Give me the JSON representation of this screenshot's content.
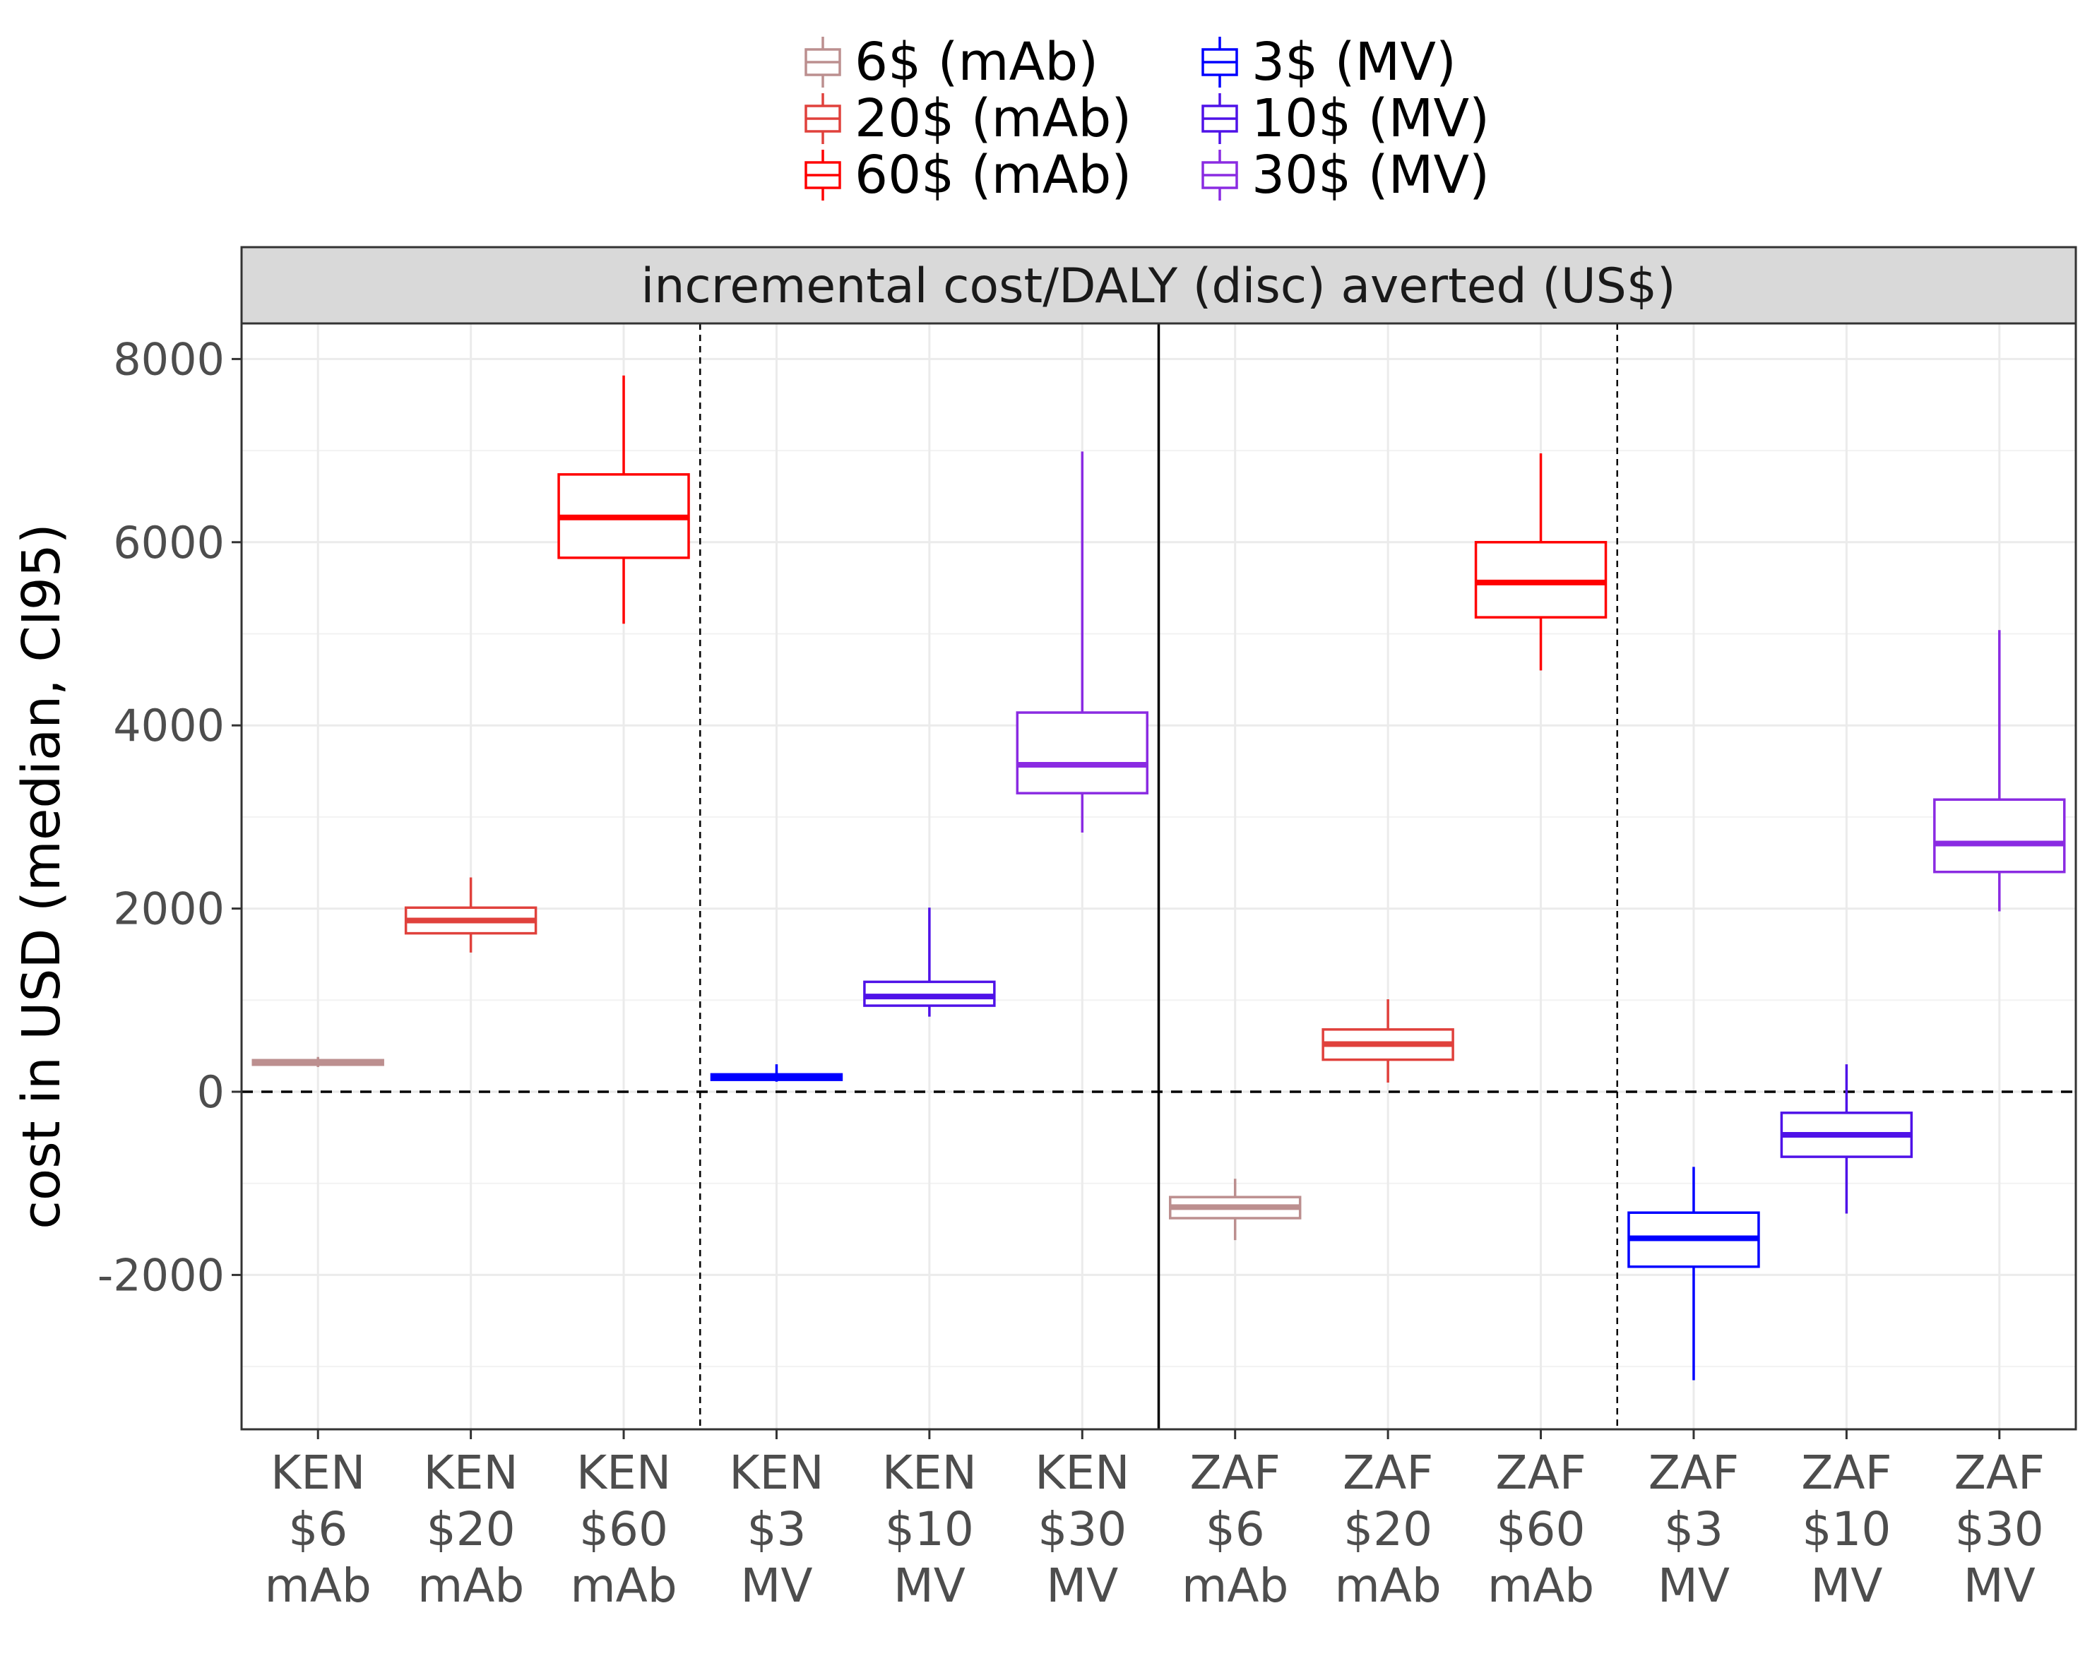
{
  "chart_data": {
    "type": "boxplot",
    "facet_title": "incremental cost/DALY (disc) averted (US$)",
    "ylabel": "cost in USD (median, CI95)",
    "xlabel": "",
    "ylim": [
      -3700,
      8400
    ],
    "yticks": [
      -2000,
      0,
      2000,
      4000,
      6000,
      8000
    ],
    "ytick_labels": [
      "-2000",
      "0",
      "2000",
      "4000",
      "6000",
      "8000"
    ],
    "grid": true,
    "legend_position": "top",
    "legend": [
      {
        "label": "6$ (mAb)",
        "color": "#bc8f8f"
      },
      {
        "label": "20$ (mAb)",
        "color": "#e0413c"
      },
      {
        "label": "60$ (mAb)",
        "color": "#ff0000"
      },
      {
        "label": "3$ (MV)",
        "color": "#0000ff"
      },
      {
        "label": "10$ (MV)",
        "color": "#4f12e8"
      },
      {
        "label": "30$ (MV)",
        "color": "#8a2be2"
      }
    ],
    "categories": [
      {
        "lines": [
          "KEN",
          "$6",
          "mAb"
        ],
        "legend_index": 0,
        "min": 270,
        "q1": 295,
        "median": 320,
        "q3": 345,
        "max": 380
      },
      {
        "lines": [
          "KEN",
          "$20",
          "mAb"
        ],
        "legend_index": 1,
        "min": 1520,
        "q1": 1730,
        "median": 1870,
        "q3": 2010,
        "max": 2340
      },
      {
        "lines": [
          "KEN",
          "$60",
          "mAb"
        ],
        "legend_index": 2,
        "min": 5110,
        "q1": 5830,
        "median": 6270,
        "q3": 6740,
        "max": 7820
      },
      {
        "lines": [
          "KEN",
          "$3",
          "MV"
        ],
        "legend_index": 3,
        "min": 110,
        "q1": 130,
        "median": 160,
        "q3": 190,
        "max": 300
      },
      {
        "lines": [
          "KEN",
          "$10",
          "MV"
        ],
        "legend_index": 4,
        "min": 820,
        "q1": 940,
        "median": 1040,
        "q3": 1200,
        "max": 2010
      },
      {
        "lines": [
          "KEN",
          "$30",
          "MV"
        ],
        "legend_index": 5,
        "min": 2830,
        "q1": 3260,
        "median": 3570,
        "q3": 4140,
        "max": 6990
      },
      {
        "lines": [
          "ZAF",
          "$6",
          "mAb"
        ],
        "legend_index": 0,
        "min": -1620,
        "q1": -1380,
        "median": -1260,
        "q3": -1150,
        "max": -950
      },
      {
        "lines": [
          "ZAF",
          "$20",
          "mAb"
        ],
        "legend_index": 1,
        "min": 100,
        "q1": 350,
        "median": 520,
        "q3": 680,
        "max": 1010
      },
      {
        "lines": [
          "ZAF",
          "$60",
          "mAb"
        ],
        "legend_index": 2,
        "min": 4600,
        "q1": 5180,
        "median": 5560,
        "q3": 6000,
        "max": 6970
      },
      {
        "lines": [
          "ZAF",
          "$3",
          "MV"
        ],
        "legend_index": 3,
        "min": -3150,
        "q1": -1910,
        "median": -1600,
        "q3": -1320,
        "max": -820
      },
      {
        "lines": [
          "ZAF",
          "$10",
          "MV"
        ],
        "legend_index": 4,
        "min": -1330,
        "q1": -710,
        "median": -470,
        "q3": -230,
        "max": 300
      },
      {
        "lines": [
          "ZAF",
          "$30",
          "MV"
        ],
        "legend_index": 5,
        "min": 1970,
        "q1": 2400,
        "median": 2710,
        "q3": 3190,
        "max": 5040
      }
    ],
    "reference_line_y": 0,
    "group_separators_after": [
      3,
      9
    ],
    "country_separator_after": 6
  }
}
